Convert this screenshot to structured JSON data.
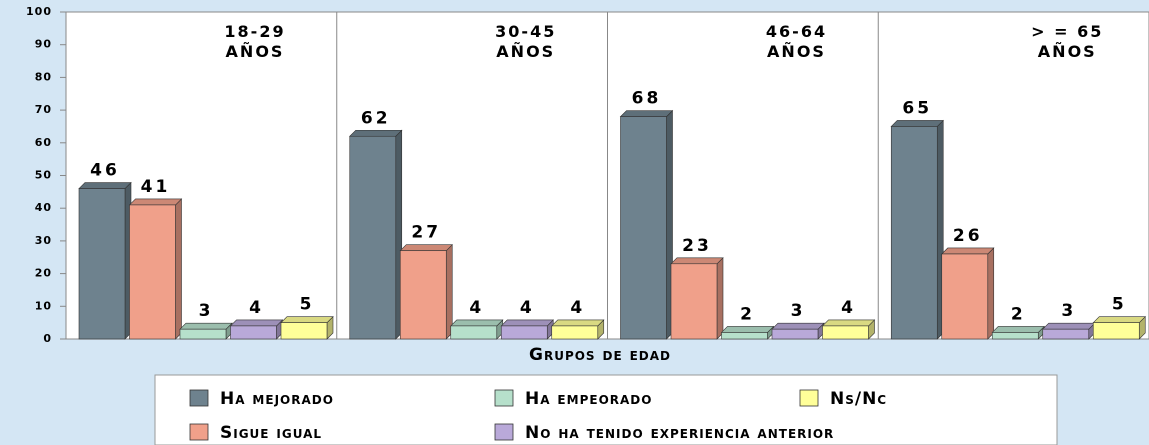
{
  "chart_data": {
    "type": "bar",
    "x_label": "Grupos de edad",
    "categories": [
      "18-29 AÑOS",
      "30-45 AÑOS",
      "46-64 AÑOS",
      "> = 65 AÑOS"
    ],
    "ylim": [
      0,
      100
    ],
    "yticks": [
      0,
      10,
      20,
      30,
      40,
      50,
      60,
      70,
      80,
      90,
      100
    ],
    "grid": false,
    "series": [
      {
        "name": "Ha mejorado",
        "color": "#6e828e",
        "values": [
          46,
          62,
          68,
          65
        ]
      },
      {
        "name": "Sigue igual",
        "color": "#f0a08a",
        "values": [
          41,
          27,
          23,
          26
        ]
      },
      {
        "name": "Ha empeorado",
        "color": "#b6e0cb",
        "values": [
          3,
          4,
          2,
          2
        ]
      },
      {
        "name": "No ha tenido experiencia anterior",
        "color": "#b9a9d9",
        "values": [
          4,
          4,
          3,
          3
        ]
      },
      {
        "name": "Ns/Nc",
        "color": "#ffff99",
        "values": [
          5,
          4,
          4,
          5
        ]
      }
    ]
  }
}
